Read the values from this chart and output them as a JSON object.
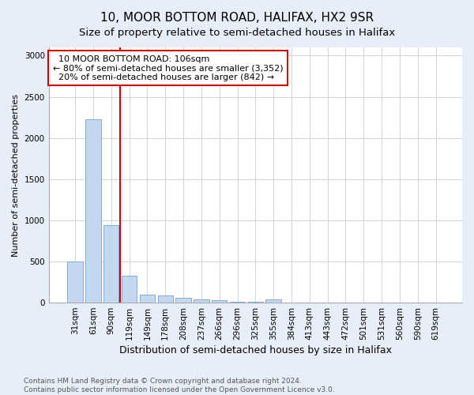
{
  "title1": "10, MOOR BOTTOM ROAD, HALIFAX, HX2 9SR",
  "title2": "Size of property relative to semi-detached houses in Halifax",
  "xlabel": "Distribution of semi-detached houses by size in Halifax",
  "ylabel": "Number of semi-detached properties",
  "categories": [
    "31sqm",
    "61sqm",
    "90sqm",
    "119sqm",
    "149sqm",
    "178sqm",
    "208sqm",
    "237sqm",
    "266sqm",
    "296sqm",
    "325sqm",
    "355sqm",
    "384sqm",
    "413sqm",
    "443sqm",
    "472sqm",
    "501sqm",
    "531sqm",
    "560sqm",
    "590sqm",
    "619sqm"
  ],
  "values": [
    500,
    2230,
    940,
    330,
    95,
    85,
    55,
    35,
    25,
    15,
    10,
    40,
    0,
    0,
    0,
    0,
    0,
    0,
    0,
    0,
    0
  ],
  "bar_color": "#c5d8f0",
  "bar_edge_color": "#7bafd4",
  "vline_color": "#cc0000",
  "annotation_text": "  10 MOOR BOTTOM ROAD: 106sqm\n← 80% of semi-detached houses are smaller (3,352)\n  20% of semi-detached houses are larger (842) →",
  "annotation_box_color": "white",
  "annotation_box_edge": "#cc0000",
  "ylim": [
    0,
    3100
  ],
  "yticks": [
    0,
    500,
    1000,
    1500,
    2000,
    2500,
    3000
  ],
  "footnote": "Contains HM Land Registry data © Crown copyright and database right 2024.\nContains public sector information licensed under the Open Government Licence v3.0.",
  "bg_color": "#e8eef8",
  "plot_bg_color": "white",
  "title1_fontsize": 11,
  "title2_fontsize": 9.5,
  "xlabel_fontsize": 9,
  "ylabel_fontsize": 8,
  "tick_fontsize": 7.5,
  "footnote_fontsize": 6.5
}
